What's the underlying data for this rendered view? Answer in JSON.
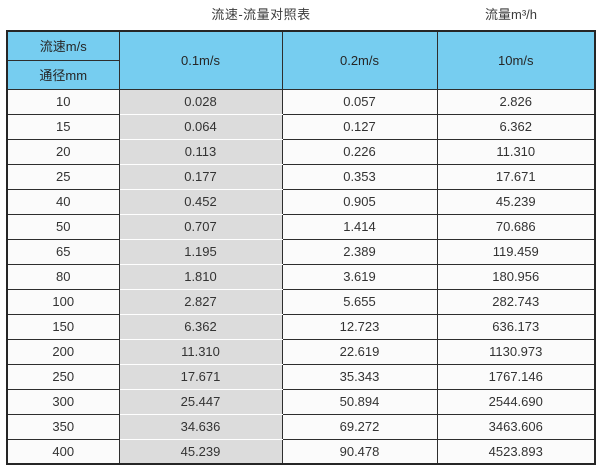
{
  "page": {
    "title_main": "流速-流量对照表",
    "title_right": "流量m³/h"
  },
  "table": {
    "corner_top": "流速m/s",
    "corner_bottom": "通径mm",
    "speed_columns": [
      "0.1m/s",
      "0.2m/s",
      "10m/s"
    ],
    "rows": [
      {
        "dn": "10",
        "values": [
          "0.028",
          "0.057",
          "2.826"
        ]
      },
      {
        "dn": "15",
        "values": [
          "0.064",
          "0.127",
          "6.362"
        ]
      },
      {
        "dn": "20",
        "values": [
          "0.113",
          "0.226",
          "11.310"
        ]
      },
      {
        "dn": "25",
        "values": [
          "0.177",
          "0.353",
          "17.671"
        ]
      },
      {
        "dn": "40",
        "values": [
          "0.452",
          "0.905",
          "45.239"
        ]
      },
      {
        "dn": "50",
        "values": [
          "0.707",
          "1.414",
          "70.686"
        ]
      },
      {
        "dn": "65",
        "values": [
          "1.195",
          "2.389",
          "119.459"
        ]
      },
      {
        "dn": "80",
        "values": [
          "1.810",
          "3.619",
          "180.956"
        ]
      },
      {
        "dn": "100",
        "values": [
          "2.827",
          "5.655",
          "282.743"
        ]
      },
      {
        "dn": "150",
        "values": [
          "6.362",
          "12.723",
          "636.173"
        ]
      },
      {
        "dn": "200",
        "values": [
          "11.310",
          "22.619",
          "1130.973"
        ]
      },
      {
        "dn": "250",
        "values": [
          "17.671",
          "35.343",
          "1767.146"
        ]
      },
      {
        "dn": "300",
        "values": [
          "25.447",
          "50.894",
          "2544.690"
        ]
      },
      {
        "dn": "350",
        "values": [
          "34.636",
          "69.272",
          "3463.606"
        ]
      },
      {
        "dn": "400",
        "values": [
          "45.239",
          "90.478",
          "4523.893"
        ]
      }
    ]
  },
  "colors": {
    "header_blue_light": "#76CDF0",
    "header_blue_dark": "#6CAECD",
    "shaded_column_gray": "#DCDCDC",
    "border": "#2e2e2e",
    "text": "#333333"
  },
  "chart_data": {
    "type": "table",
    "title": "流速-流量对照表",
    "value_unit": "流量m³/h",
    "row_dimension": "通径mm",
    "column_dimension": "流速m/s",
    "columns": [
      "0.1m/s",
      "0.2m/s",
      "10m/s"
    ],
    "rows": [
      [
        10,
        0.028,
        0.057,
        2.826
      ],
      [
        15,
        0.064,
        0.127,
        6.362
      ],
      [
        20,
        0.113,
        0.226,
        11.31
      ],
      [
        25,
        0.177,
        0.353,
        17.671
      ],
      [
        40,
        0.452,
        0.905,
        45.239
      ],
      [
        50,
        0.707,
        1.414,
        70.686
      ],
      [
        65,
        1.195,
        2.389,
        119.459
      ],
      [
        80,
        1.81,
        3.619,
        180.956
      ],
      [
        100,
        2.827,
        5.655,
        282.743
      ],
      [
        150,
        6.362,
        12.723,
        636.173
      ],
      [
        200,
        11.31,
        22.619,
        1130.973
      ],
      [
        250,
        17.671,
        35.343,
        1767.146
      ],
      [
        300,
        25.447,
        50.894,
        2544.69
      ],
      [
        350,
        34.636,
        69.272,
        3463.606
      ],
      [
        400,
        45.239,
        90.478,
        4523.893
      ]
    ]
  }
}
